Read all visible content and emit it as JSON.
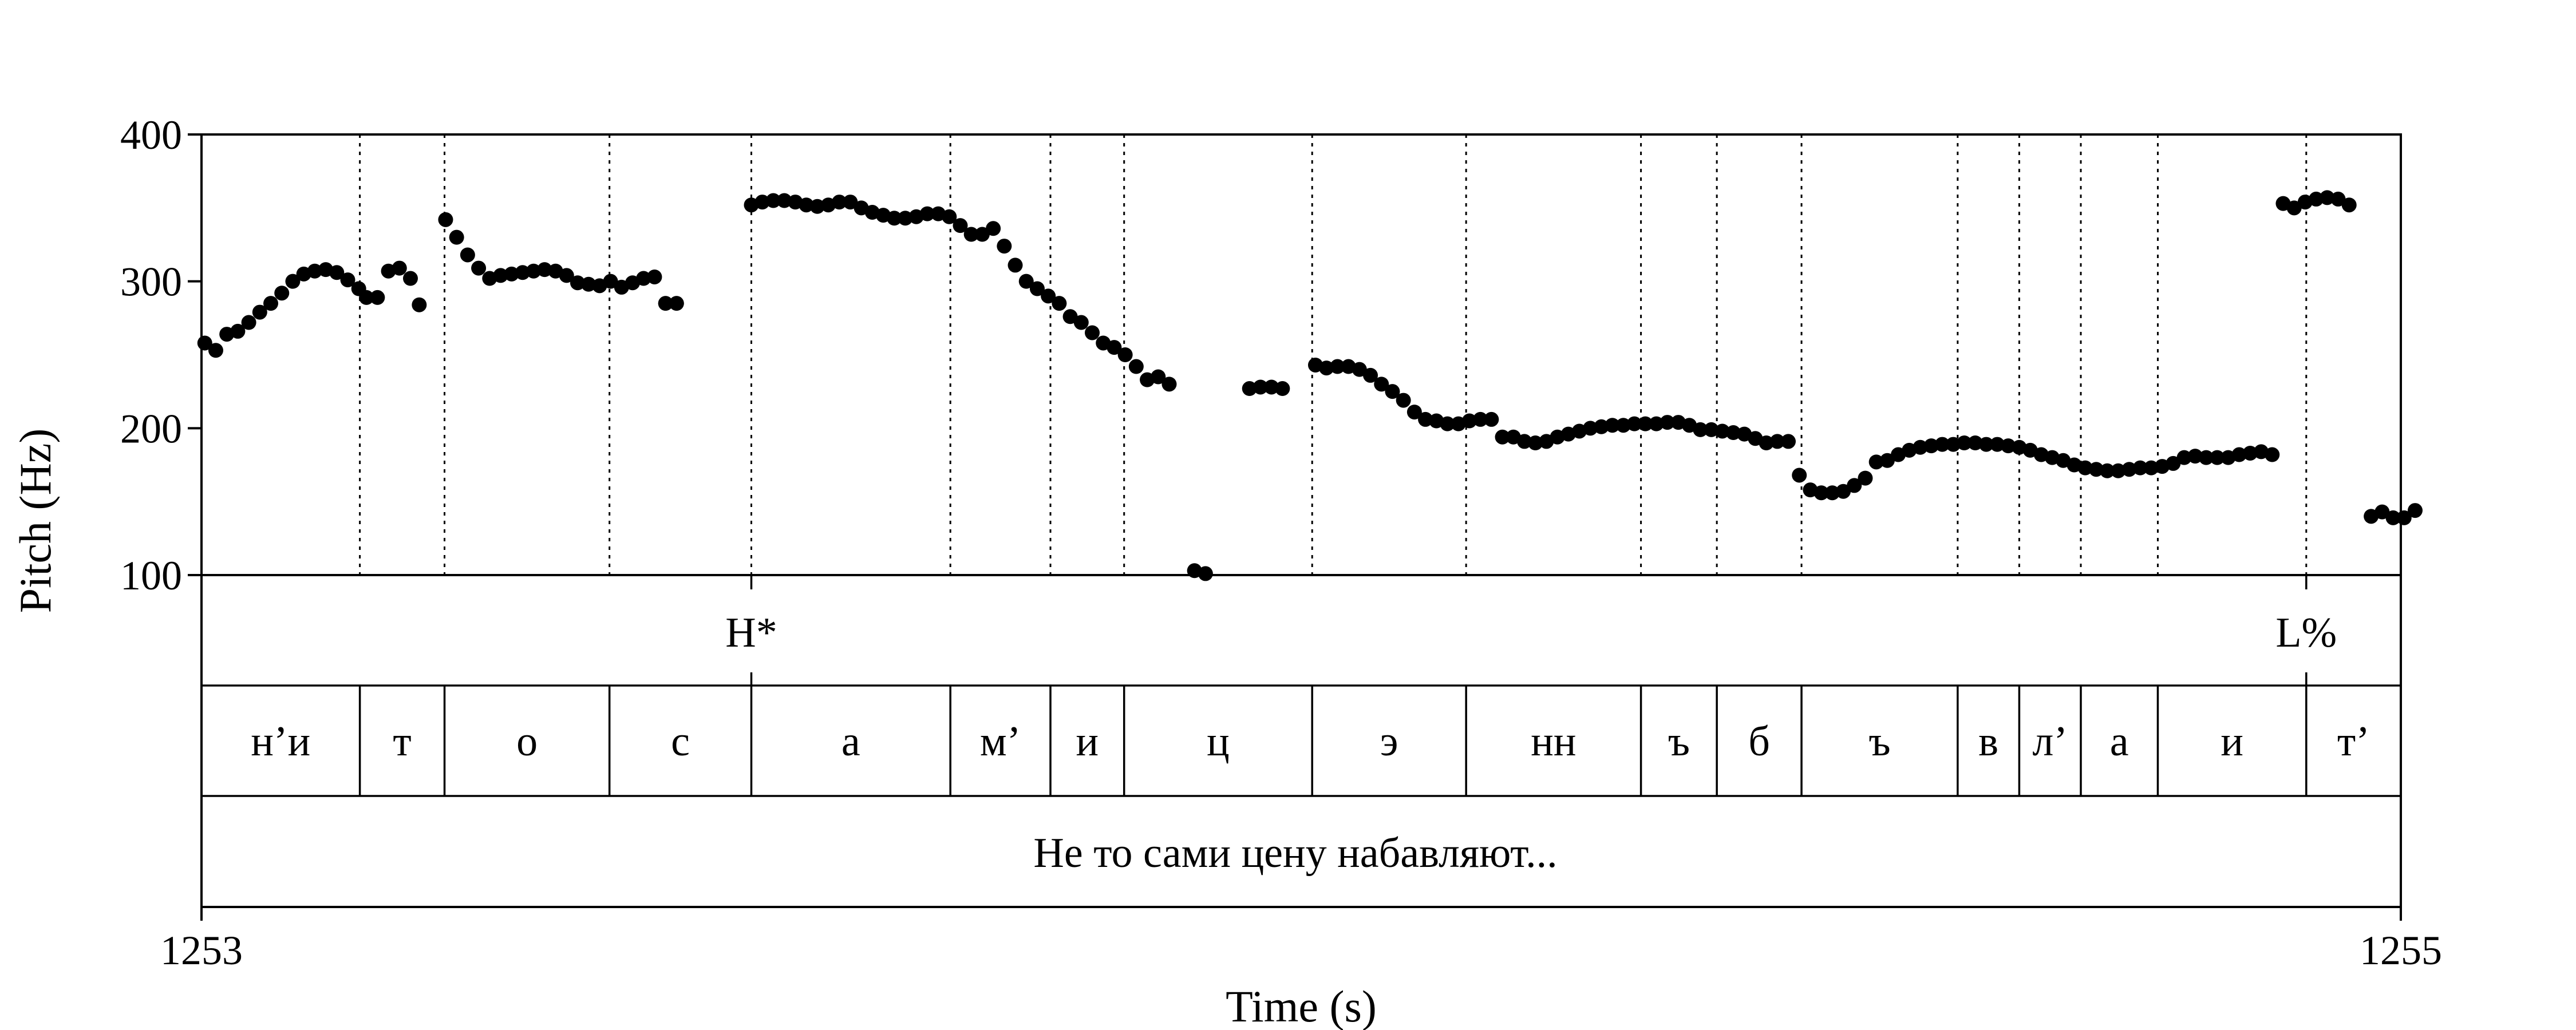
{
  "chart_data": {
    "type": "scatter",
    "xlabel": "Time (s)",
    "ylabel": "Pitch (Hz)",
    "xlim": [
      1253,
      1255
    ],
    "ylim": [
      100,
      400
    ],
    "x_tick_labels": [
      "1253",
      "1255"
    ],
    "y_ticks": [
      100,
      200,
      300,
      400
    ],
    "y_tick_labels": [
      "100",
      "200",
      "300",
      "400"
    ],
    "series": [
      {
        "values": [
          [
            1253.003,
            258
          ],
          [
            1253.013,
            253
          ],
          [
            1253.023,
            264
          ],
          [
            1253.033,
            266
          ],
          [
            1253.043,
            272
          ],
          [
            1253.053,
            279
          ],
          [
            1253.063,
            285
          ],
          [
            1253.073,
            292
          ],
          [
            1253.083,
            300
          ],
          [
            1253.093,
            305
          ],
          [
            1253.103,
            307
          ],
          [
            1253.113,
            308
          ],
          [
            1253.123,
            306
          ],
          [
            1253.133,
            301
          ],
          [
            1253.143,
            295
          ],
          [
            1253.15,
            289
          ],
          [
            1253.16,
            289
          ],
          [
            1253.17,
            307
          ],
          [
            1253.18,
            309
          ],
          [
            1253.19,
            302
          ],
          [
            1253.198,
            284
          ],
          [
            1253.222,
            342
          ],
          [
            1253.232,
            330
          ],
          [
            1253.242,
            318
          ],
          [
            1253.252,
            309
          ],
          [
            1253.262,
            302
          ],
          [
            1253.272,
            304
          ],
          [
            1253.282,
            305
          ],
          [
            1253.292,
            306
          ],
          [
            1253.302,
            307
          ],
          [
            1253.312,
            308
          ],
          [
            1253.322,
            307
          ],
          [
            1253.332,
            304
          ],
          [
            1253.342,
            299
          ],
          [
            1253.352,
            298
          ],
          [
            1253.362,
            297
          ],
          [
            1253.372,
            300
          ],
          [
            1253.382,
            296
          ],
          [
            1253.392,
            299
          ],
          [
            1253.402,
            302
          ],
          [
            1253.412,
            303
          ],
          [
            1253.422,
            285
          ],
          [
            1253.432,
            285
          ],
          [
            1253.5,
            352
          ],
          [
            1253.51,
            354
          ],
          [
            1253.52,
            355
          ],
          [
            1253.53,
            355
          ],
          [
            1253.54,
            354
          ],
          [
            1253.55,
            352
          ],
          [
            1253.56,
            351
          ],
          [
            1253.57,
            352
          ],
          [
            1253.58,
            354
          ],
          [
            1253.59,
            354
          ],
          [
            1253.6,
            350
          ],
          [
            1253.61,
            347
          ],
          [
            1253.62,
            345
          ],
          [
            1253.63,
            343
          ],
          [
            1253.64,
            343
          ],
          [
            1253.65,
            344
          ],
          [
            1253.66,
            346
          ],
          [
            1253.67,
            346
          ],
          [
            1253.68,
            344
          ],
          [
            1253.69,
            338
          ],
          [
            1253.7,
            332
          ],
          [
            1253.71,
            332
          ],
          [
            1253.72,
            336
          ],
          [
            1253.73,
            324
          ],
          [
            1253.74,
            311
          ],
          [
            1253.75,
            300
          ],
          [
            1253.76,
            295
          ],
          [
            1253.77,
            290
          ],
          [
            1253.78,
            285
          ],
          [
            1253.79,
            276
          ],
          [
            1253.8,
            272
          ],
          [
            1253.81,
            265
          ],
          [
            1253.82,
            258
          ],
          [
            1253.83,
            255
          ],
          [
            1253.84,
            250
          ],
          [
            1253.85,
            242
          ],
          [
            1253.86,
            233
          ],
          [
            1253.87,
            235
          ],
          [
            1253.88,
            230
          ],
          [
            1253.903,
            103
          ],
          [
            1253.913,
            101
          ],
          [
            1253.953,
            227
          ],
          [
            1253.963,
            228
          ],
          [
            1253.973,
            228
          ],
          [
            1253.983,
            227
          ],
          [
            1254.013,
            243
          ],
          [
            1254.023,
            241
          ],
          [
            1254.033,
            242
          ],
          [
            1254.043,
            242
          ],
          [
            1254.053,
            240
          ],
          [
            1254.063,
            236
          ],
          [
            1254.073,
            230
          ],
          [
            1254.083,
            225
          ],
          [
            1254.093,
            219
          ],
          [
            1254.103,
            211
          ],
          [
            1254.113,
            206
          ],
          [
            1254.123,
            205
          ],
          [
            1254.133,
            203
          ],
          [
            1254.143,
            203
          ],
          [
            1254.153,
            205
          ],
          [
            1254.163,
            206
          ],
          [
            1254.173,
            206
          ],
          [
            1254.183,
            194
          ],
          [
            1254.193,
            194
          ],
          [
            1254.203,
            191
          ],
          [
            1254.213,
            190
          ],
          [
            1254.223,
            191
          ],
          [
            1254.233,
            194
          ],
          [
            1254.243,
            196
          ],
          [
            1254.253,
            198
          ],
          [
            1254.263,
            200
          ],
          [
            1254.273,
            201
          ],
          [
            1254.283,
            202
          ],
          [
            1254.293,
            202
          ],
          [
            1254.303,
            203
          ],
          [
            1254.313,
            203
          ],
          [
            1254.323,
            203
          ],
          [
            1254.333,
            204
          ],
          [
            1254.343,
            204
          ],
          [
            1254.353,
            202
          ],
          [
            1254.363,
            199
          ],
          [
            1254.373,
            199
          ],
          [
            1254.383,
            198
          ],
          [
            1254.393,
            197
          ],
          [
            1254.403,
            196
          ],
          [
            1254.413,
            193
          ],
          [
            1254.423,
            190
          ],
          [
            1254.433,
            191
          ],
          [
            1254.443,
            191
          ],
          [
            1254.453,
            168
          ],
          [
            1254.463,
            158
          ],
          [
            1254.473,
            156
          ],
          [
            1254.483,
            156
          ],
          [
            1254.493,
            157
          ],
          [
            1254.503,
            161
          ],
          [
            1254.513,
            166
          ],
          [
            1254.523,
            177
          ],
          [
            1254.533,
            178
          ],
          [
            1254.543,
            182
          ],
          [
            1254.553,
            185
          ],
          [
            1254.563,
            187
          ],
          [
            1254.573,
            188
          ],
          [
            1254.583,
            189
          ],
          [
            1254.593,
            189
          ],
          [
            1254.603,
            190
          ],
          [
            1254.613,
            190
          ],
          [
            1254.623,
            189
          ],
          [
            1254.633,
            189
          ],
          [
            1254.643,
            188
          ],
          [
            1254.653,
            187
          ],
          [
            1254.663,
            185
          ],
          [
            1254.673,
            182
          ],
          [
            1254.683,
            180
          ],
          [
            1254.693,
            178
          ],
          [
            1254.703,
            175
          ],
          [
            1254.713,
            173
          ],
          [
            1254.723,
            172
          ],
          [
            1254.733,
            171
          ],
          [
            1254.743,
            171
          ],
          [
            1254.753,
            172
          ],
          [
            1254.763,
            173
          ],
          [
            1254.773,
            173
          ],
          [
            1254.783,
            174
          ],
          [
            1254.793,
            176
          ],
          [
            1254.803,
            180
          ],
          [
            1254.813,
            181
          ],
          [
            1254.823,
            180
          ],
          [
            1254.833,
            180
          ],
          [
            1254.843,
            180
          ],
          [
            1254.853,
            182
          ],
          [
            1254.863,
            183
          ],
          [
            1254.873,
            184
          ],
          [
            1254.883,
            182
          ],
          [
            1254.893,
            353
          ],
          [
            1254.903,
            350
          ],
          [
            1254.913,
            354
          ],
          [
            1254.923,
            356
          ],
          [
            1254.933,
            357
          ],
          [
            1254.943,
            356
          ],
          [
            1254.953,
            352
          ],
          [
            1254.973,
            140
          ],
          [
            1254.983,
            143
          ],
          [
            1254.993,
            139
          ],
          [
            1255.003,
            139
          ],
          [
            1255.013,
            144
          ]
        ]
      }
    ],
    "tiers": [
      {
        "name": "tones",
        "points": [
          {
            "time": 1253.5,
            "label": "H*"
          },
          {
            "time": 1254.914,
            "label": "L%"
          }
        ]
      },
      {
        "name": "segments",
        "boundaries": [
          1253.144,
          1253.221,
          1253.371,
          1253.5,
          1253.681,
          1253.772,
          1253.839,
          1254.01,
          1254.15,
          1254.309,
          1254.378,
          1254.455,
          1254.597,
          1254.653,
          1254.709,
          1254.779,
          1254.914
        ],
        "labels": [
          "н’и",
          "т",
          "о",
          "с",
          "а",
          "м’",
          "и",
          "ц",
          "э",
          "нн",
          "ъ",
          "б",
          "ъ",
          "в",
          "л’",
          "а",
          "и",
          "т’"
        ]
      },
      {
        "name": "utterance",
        "label": "Не то сами цену набавляют..."
      }
    ]
  }
}
